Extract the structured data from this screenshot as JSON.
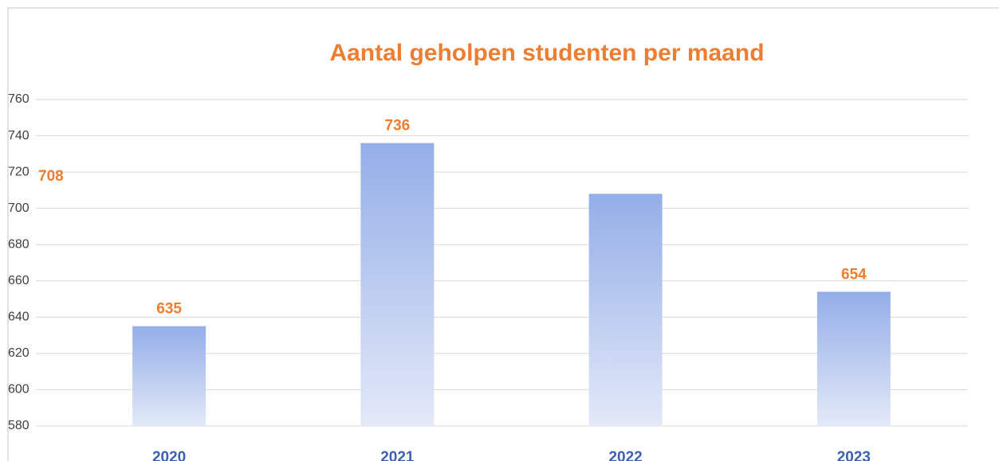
{
  "chart_data": {
    "type": "bar",
    "title": "Aantal geholpen studenten per maand",
    "categories": [
      "2020",
      "2021",
      "2022",
      "2023"
    ],
    "values": [
      635,
      736,
      708,
      654
    ],
    "color": "#94aee8",
    "ylim": [
      580,
      760
    ],
    "yticks": [
      580,
      600,
      620,
      640,
      660,
      680,
      700,
      720,
      740,
      760
    ],
    "grid": true
  }
}
